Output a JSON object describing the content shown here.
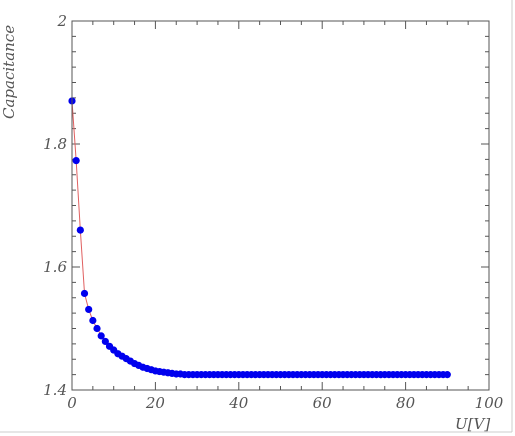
{
  "chart_data": {
    "type": "scatter",
    "title": "",
    "xlabel": "U[V]",
    "ylabel": "Capacitance",
    "xlim": [
      0,
      100
    ],
    "ylim": [
      1.4,
      2.0
    ],
    "x_ticks": [
      "0",
      "20",
      "40",
      "60",
      "80",
      "100"
    ],
    "y_ticks": [
      "1.4",
      "1.6",
      "1.8",
      "2"
    ],
    "grid": false,
    "legend": "none",
    "colors": {
      "points": "#0000ee",
      "fit_line": "#e06060",
      "frame": "#555555"
    },
    "series": [
      {
        "marker": "circle",
        "x": [
          0,
          1,
          2,
          3,
          4,
          5,
          6,
          7,
          8,
          9,
          10,
          11,
          12,
          13,
          14,
          15,
          16,
          17,
          18,
          19,
          20,
          21,
          22,
          23,
          24,
          25,
          26,
          27,
          28,
          29,
          30,
          31,
          32,
          33,
          34,
          35,
          36,
          37,
          38,
          39,
          40,
          41,
          42,
          43,
          44,
          45,
          46,
          47,
          48,
          49,
          50,
          51,
          52,
          53,
          54,
          55,
          56,
          57,
          58,
          59,
          60,
          61,
          62,
          63,
          64,
          65,
          66,
          67,
          68,
          69,
          70,
          71,
          72,
          73,
          74,
          75,
          76,
          77,
          78,
          79,
          80,
          81,
          82,
          83,
          84,
          85,
          86,
          87,
          88,
          89,
          90
        ],
        "y": [
          1.87,
          1.773,
          1.66,
          1.557,
          1.531,
          1.513,
          1.5,
          1.488,
          1.479,
          1.471,
          1.465,
          1.459,
          1.455,
          1.451,
          1.447,
          1.443,
          1.44,
          1.437,
          1.435,
          1.433,
          1.431,
          1.43,
          1.429,
          1.428,
          1.427,
          1.426,
          1.426,
          1.425,
          1.425,
          1.425,
          1.425,
          1.425,
          1.425,
          1.425,
          1.425,
          1.425,
          1.425,
          1.425,
          1.425,
          1.425,
          1.425,
          1.425,
          1.425,
          1.425,
          1.425,
          1.425,
          1.425,
          1.425,
          1.425,
          1.425,
          1.425,
          1.425,
          1.425,
          1.425,
          1.425,
          1.425,
          1.425,
          1.425,
          1.425,
          1.425,
          1.425,
          1.425,
          1.425,
          1.425,
          1.425,
          1.425,
          1.425,
          1.425,
          1.425,
          1.425,
          1.425,
          1.425,
          1.425,
          1.425,
          1.425,
          1.425,
          1.425,
          1.425,
          1.425,
          1.425,
          1.425,
          1.425,
          1.425,
          1.425,
          1.425,
          1.425,
          1.425,
          1.425,
          1.425,
          1.425,
          1.425
        ]
      }
    ],
    "fit_line": {
      "x": [
        0,
        1,
        2,
        3,
        4,
        5,
        6,
        8,
        10,
        12,
        15,
        20,
        25,
        30,
        40,
        60,
        90
      ],
      "y": [
        1.87,
        1.773,
        1.66,
        1.557,
        1.531,
        1.513,
        1.5,
        1.479,
        1.465,
        1.455,
        1.443,
        1.431,
        1.426,
        1.425,
        1.425,
        1.425,
        1.425
      ]
    }
  }
}
